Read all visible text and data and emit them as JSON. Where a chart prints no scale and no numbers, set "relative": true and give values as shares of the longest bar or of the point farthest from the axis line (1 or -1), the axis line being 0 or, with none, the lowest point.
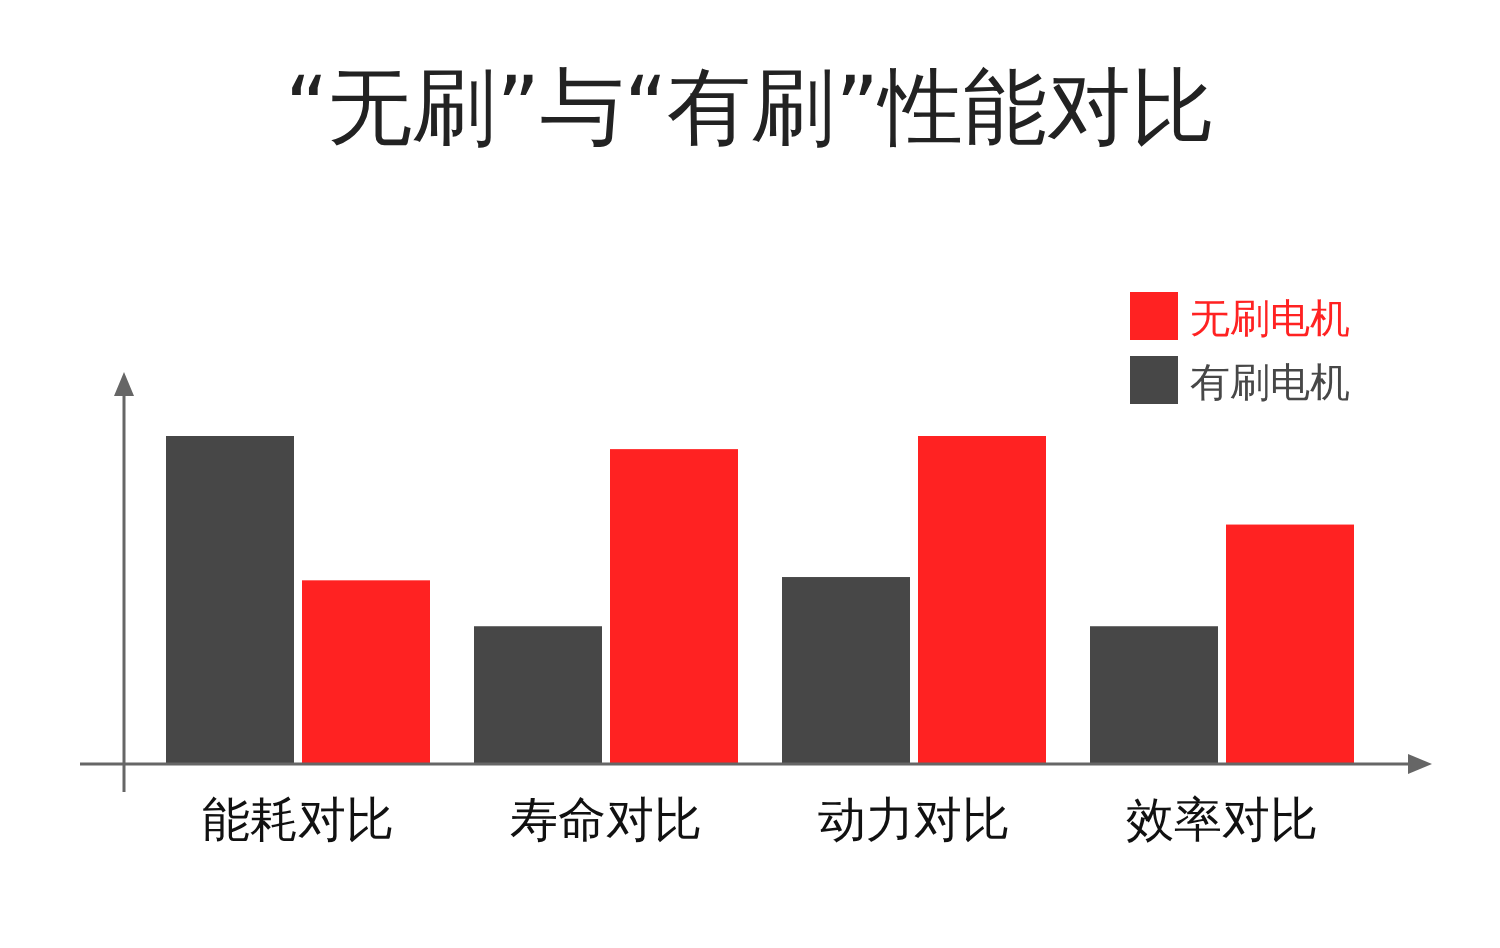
{
  "chart_data": {
    "type": "bar",
    "title": "“无刷”与“有刷”性能对比",
    "categories": [
      "能耗对比",
      "寿命对比",
      "动力对比",
      "效率对比"
    ],
    "relative": true,
    "legend": "top right",
    "series": [
      {
        "name": "有刷电机",
        "color": "#474747",
        "values": [
          1,
          0.42,
          0.57,
          0.42
        ]
      },
      {
        "name": "无刷电机",
        "color": "#ff2222",
        "values": [
          0.56,
          0.96,
          1,
          0.73
        ]
      }
    ]
  }
}
